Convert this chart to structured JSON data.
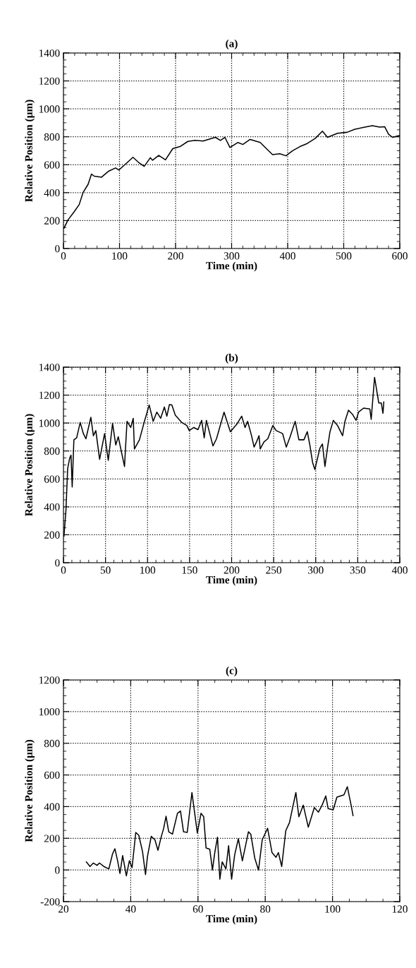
{
  "chart_data": [
    {
      "type": "line",
      "title": "(a)",
      "xlabel": "Time (min)",
      "ylabel": "Relative Position (µm)",
      "xlim": [
        0,
        600
      ],
      "xticks": [
        0,
        100,
        200,
        300,
        400,
        500,
        600
      ],
      "ylim": [
        0,
        1400
      ],
      "yticks": [
        0,
        200,
        400,
        600,
        800,
        1000,
        1200,
        1400
      ],
      "grid": true,
      "marker": "none",
      "line_style": "solid",
      "series": [
        {
          "color": "#000000",
          "x": [
            1,
            8,
            19,
            28,
            35,
            44,
            50,
            55,
            68,
            81,
            93,
            99,
            113,
            124,
            135,
            144,
            155,
            159,
            170,
            182,
            195,
            208,
            222,
            235,
            249,
            271,
            280,
            288,
            297,
            311,
            320,
            333,
            351,
            362,
            373,
            386,
            397,
            409,
            422,
            435,
            449,
            462,
            471,
            489,
            506,
            520,
            538,
            551,
            564,
            573,
            580,
            587,
            600
          ],
          "values": [
            146,
            204,
            263,
            314,
            401,
            460,
            533,
            518,
            511,
            555,
            577,
            562,
            613,
            653,
            613,
            588,
            650,
            632,
            667,
            635,
            715,
            730,
            767,
            774,
            769,
            796,
            774,
            796,
            723,
            759,
            745,
            781,
            759,
            715,
            672,
            679,
            664,
            701,
            730,
            752,
            788,
            840,
            796,
            825,
            832,
            854,
            869,
            880,
            869,
            872,
            818,
            796,
            810
          ]
        }
      ]
    },
    {
      "type": "line",
      "title": "(b)",
      "xlabel": "Time (min)",
      "ylabel": "Relative Position (µm)",
      "xlim": [
        0,
        400
      ],
      "xticks": [
        0,
        50,
        100,
        150,
        200,
        250,
        300,
        350,
        400
      ],
      "ylim": [
        0,
        1400
      ],
      "yticks": [
        0,
        200,
        400,
        600,
        800,
        1000,
        1200,
        1400
      ],
      "grid": true,
      "marker": "none",
      "line_style": "solid",
      "series": [
        {
          "color": "#000000",
          "x": [
            0.6,
            3,
            5,
            7.4,
            9,
            10.4,
            12.4,
            15.7,
            19.9,
            23.7,
            26.7,
            32.6,
            35.6,
            38.5,
            43,
            48.9,
            53.3,
            58.4,
            62.2,
            65.2,
            72.6,
            75.6,
            80,
            83,
            84.4,
            90.4,
            96.3,
            102,
            106.7,
            111,
            115.6,
            120,
            123,
            126,
            128.9,
            133,
            140.7,
            146.7,
            149.6,
            155,
            160,
            164.4,
            167.4,
            170,
            177.8,
            182,
            191,
            198.5,
            206,
            212,
            216,
            219,
            223.7,
            226.7,
            229.6,
            232.6,
            234,
            238.5,
            243,
            249,
            253,
            260.7,
            265,
            269.6,
            275.6,
            280,
            286,
            290,
            293,
            296.3,
            299,
            305,
            308,
            311,
            314,
            317,
            321,
            326,
            332,
            334.8,
            339,
            343.7,
            348,
            351,
            357,
            364.4,
            366,
            370,
            375,
            378,
            380,
            381
          ],
          "values": [
            190,
            380,
            674,
            748,
            770,
            542,
            880,
            894,
            1004,
            924,
            887,
            1041,
            909,
            946,
            740,
            924,
            733,
            997,
            843,
            902,
            689,
            1012,
            968,
            1034,
            814,
            880,
            1012,
            1129,
            1012,
            1078,
            1034,
            1115,
            1049,
            1132,
            1129,
            1056,
            1004,
            982,
            946,
            968,
            953,
            1019,
            894,
            1019,
            836,
            887,
            1078,
            938,
            990,
            1049,
            968,
            1012,
            909,
            828,
            865,
            909,
            814,
            865,
            887,
            982,
            946,
            924,
            828,
            902,
            1012,
            880,
            880,
            938,
            843,
            718,
            667,
            821,
            850,
            689,
            821,
            938,
            1019,
            982,
            909,
            1012,
            1092,
            1063,
            1019,
            1078,
            1107,
            1100,
            1026,
            1327,
            1144,
            1144,
            1070,
            1151
          ]
        }
      ]
    },
    {
      "type": "line",
      "title": "(c)",
      "xlabel": "Time (min)",
      "ylabel": "Relative Position (µm)",
      "xlim": [
        20,
        120
      ],
      "xticks": [
        20,
        40,
        60,
        80,
        100,
        120
      ],
      "ylim": [
        -200,
        1200
      ],
      "yticks": [
        -200,
        0,
        200,
        400,
        600,
        800,
        1000,
        1200
      ],
      "grid": true,
      "marker": "none",
      "line_style": "solid",
      "series": [
        {
          "color": "#000000",
          "x": [
            26.8,
            27.9,
            28.9,
            30,
            30.7,
            32,
            33.5,
            34.6,
            35.3,
            36.1,
            36.8,
            37.6,
            38.7,
            39.6,
            40.4,
            41.5,
            42.4,
            43.5,
            44.4,
            45,
            46.1,
            47.2,
            48.1,
            49,
            49.8,
            50.5,
            51.3,
            52.4,
            53.9,
            54.8,
            55.7,
            56.8,
            58.2,
            58.7,
            59.8,
            60.9,
            61.7,
            62.4,
            63.5,
            64.3,
            65,
            65.8,
            66.5,
            67.2,
            68.3,
            69.1,
            70,
            70.9,
            72,
            73.2,
            75,
            75.7,
            76.9,
            78,
            79.1,
            80.7,
            82,
            83.2,
            83.9,
            84.9,
            86.1,
            87.2,
            89.1,
            90,
            91.3,
            92.8,
            94.6,
            95.8,
            96.9,
            98,
            98.7,
            100.2,
            101.3,
            103.4,
            104.4,
            105.6,
            106.1
          ],
          "values": [
            51,
            22,
            44,
            29,
            44,
            22,
            7,
            102,
            134,
            58,
            -22,
            91,
            -37,
            58,
            15,
            237,
            219,
            117,
            -29,
            88,
            212,
            190,
            124,
            204,
            263,
            339,
            241,
            226,
            358,
            372,
            241,
            237,
            489,
            409,
            234,
            358,
            336,
            139,
            131,
            0,
            110,
            207,
            -58,
            51,
            7,
            153,
            -58,
            95,
            197,
            58,
            241,
            226,
            73,
            0,
            190,
            263,
            110,
            80,
            110,
            22,
            248,
            299,
            489,
            336,
            409,
            270,
            394,
            365,
            409,
            467,
            387,
            380,
            460,
            474,
            526,
            401,
            343
          ]
        }
      ]
    }
  ]
}
